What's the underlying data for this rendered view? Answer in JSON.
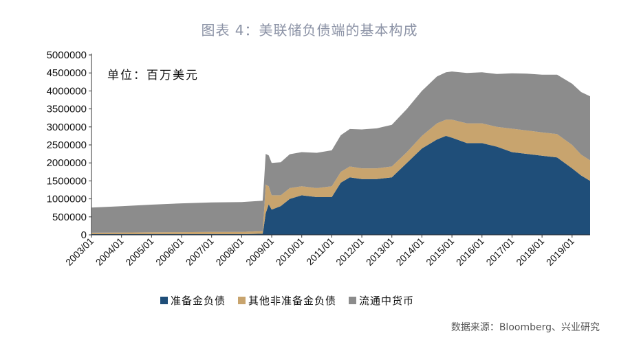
{
  "title": "图表 4：美联储负债端的基本构成",
  "unit_label": "单位：百万美元",
  "source": "数据来源：Bloomberg、兴业研究",
  "colors": {
    "reserve": "#1f4e79",
    "other": "#c8a46e",
    "currency": "#8c8c8c"
  },
  "chart_data": {
    "type": "area",
    "stacked": true,
    "ylim": [
      0,
      5000000
    ],
    "yticks": [
      0,
      500000,
      1000000,
      1500000,
      2000000,
      2500000,
      3000000,
      3500000,
      4000000,
      4500000,
      5000000
    ],
    "xlim": [
      2003.0,
      2019.6
    ],
    "xticks": [
      "2003/01",
      "2004/01",
      "2005/01",
      "2006/01",
      "2007/01",
      "2008/01",
      "2009/01",
      "2010/01",
      "2011/01",
      "2012/01",
      "2013/01",
      "2014/01",
      "2015/01",
      "2016/01",
      "2017/01",
      "2018/01",
      "2019/01"
    ],
    "x": [
      2003.0,
      2004.0,
      2005.0,
      2006.0,
      2007.0,
      2008.0,
      2008.7,
      2008.75,
      2008.8,
      2008.9,
      2009.0,
      2009.3,
      2009.6,
      2010.0,
      2010.5,
      2011.0,
      2011.3,
      2011.6,
      2012.0,
      2012.5,
      2013.0,
      2013.5,
      2014.0,
      2014.5,
      2014.8,
      2015.0,
      2015.5,
      2016.0,
      2016.5,
      2017.0,
      2017.5,
      2018.0,
      2018.5,
      2019.0,
      2019.3,
      2019.6
    ],
    "series": [
      {
        "name": "准备金负债",
        "values": [
          20000,
          20000,
          20000,
          20000,
          20000,
          20000,
          30000,
          300000,
          600000,
          850000,
          700000,
          800000,
          1000000,
          1100000,
          1050000,
          1050000,
          1450000,
          1600000,
          1550000,
          1550000,
          1600000,
          2000000,
          2400000,
          2650000,
          2750000,
          2700000,
          2550000,
          2550000,
          2450000,
          2300000,
          2250000,
          2200000,
          2150000,
          1850000,
          1650000,
          1500000
        ]
      },
      {
        "name": "其他非准备金负债",
        "values": [
          40000,
          45000,
          50000,
          55000,
          60000,
          60000,
          80000,
          400000,
          800000,
          500000,
          400000,
          300000,
          300000,
          250000,
          250000,
          300000,
          300000,
          300000,
          300000,
          300000,
          300000,
          300000,
          350000,
          450000,
          450000,
          500000,
          550000,
          550000,
          550000,
          650000,
          650000,
          650000,
          650000,
          650000,
          580000,
          570000
        ]
      },
      {
        "name": "流通中货币",
        "values": [
          700000,
          730000,
          770000,
          800000,
          820000,
          830000,
          840000,
          850000,
          850000,
          860000,
          900000,
          920000,
          940000,
          950000,
          980000,
          1000000,
          1020000,
          1040000,
          1080000,
          1110000,
          1160000,
          1200000,
          1250000,
          1300000,
          1320000,
          1340000,
          1400000,
          1420000,
          1470000,
          1540000,
          1580000,
          1600000,
          1650000,
          1700000,
          1740000,
          1780000
        ]
      }
    ]
  }
}
